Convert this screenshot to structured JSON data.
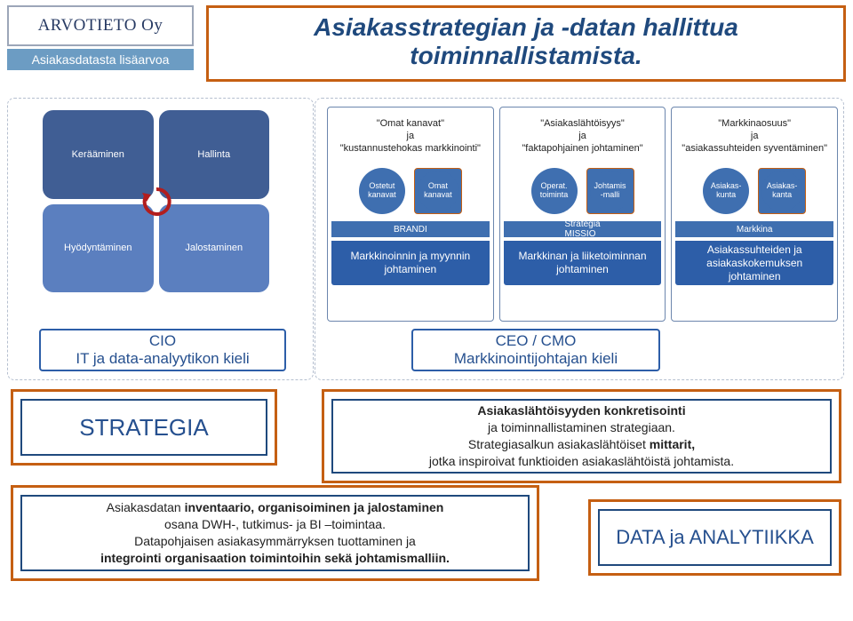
{
  "header": {
    "logo_text": "ARVOTIETO",
    "logo_suffix": "Oy",
    "tagline": "Asiakasdatasta lisäarvoa",
    "title": "Asiakasstrategian ja -datan hallittua toiminnallistamista."
  },
  "quad": {
    "tl": "Kerääminen",
    "tr": "Hallinta",
    "bl": "Hyödyntäminen",
    "br": "Jalostaminen",
    "colors": {
      "dark": "#405e94",
      "light": "#5b7fbf"
    },
    "arrow_color": "#b21d1d"
  },
  "cols": [
    {
      "quote": "\"Omat kanavat\"\nja\n\"kustannustehokas markkinointi\"",
      "circles": [
        {
          "label": "Ostetut\nkanavat",
          "boxed": false
        },
        {
          "label": "Omat\nkanavat",
          "boxed": true
        }
      ],
      "ground": "BRANDI",
      "bottom": "Markkinoinnin ja myynnin johtaminen"
    },
    {
      "quote": "\"Asiakaslähtöisyys\"\nja\n\"faktapohjainen johtaminen\"",
      "circles": [
        {
          "label": "Operat.\ntoiminta",
          "boxed": false
        },
        {
          "label": "Johtamis\n-malli",
          "boxed": true
        }
      ],
      "ground": "Strategia\nMISSIO",
      "bottom": "Markkinan ja liiketoiminnan johtaminen"
    },
    {
      "quote": "\"Markkinaosuus\"\nja\n\"asiakassuhteiden syventäminen\"",
      "circles": [
        {
          "label": "Asiakas-\nkunta",
          "boxed": false
        },
        {
          "label": "Asiakas-\nkanta",
          "boxed": true
        }
      ],
      "ground": "Markkina",
      "bottom": "Asiakassuhteiden ja asiakaskokemuksen johtaminen"
    }
  ],
  "roles": {
    "cio_line1": "CIO",
    "cio_line2": "IT ja data-analyytikon kieli",
    "ceo_line1": "CEO / CMO",
    "ceo_line2": "Markkinointijohtajan kieli"
  },
  "strategy": {
    "strategia_label": "STRATEGIA",
    "right_l1": "Asiakaslähtöisyyden konkretisointi",
    "right_l2": "ja toiminnallistaminen strategiaan.",
    "right_l3_pre": "Strategiasalkun asiakaslähtöiset ",
    "right_l3_bold": "mittarit,",
    "right_l4": "jotka inspiroivat funktioiden asiakaslähtöistä johtamista.",
    "left_l1_pre": "Asiakasdatan ",
    "left_l1_bold": "inventaario, organisoiminen ja jalostaminen",
    "left_l2": "osana DWH-, tutkimus- ja BI –toimintaa.",
    "left_l3": "Datapohjaisen asiakasymmärryksen tuottaminen ja",
    "left_l4_bold": "integrointi organisaation toimintoihin sekä johtamismalliin.",
    "data_label": "DATA ja ANALYTIIKKA"
  },
  "colors": {
    "orange": "#c55f12",
    "navy": "#1f497d",
    "blue": "#2d5ea8",
    "midblue": "#3f6fb0",
    "lightblue": "#6c9cc3",
    "text": "#222222",
    "bg": "#ffffff"
  }
}
